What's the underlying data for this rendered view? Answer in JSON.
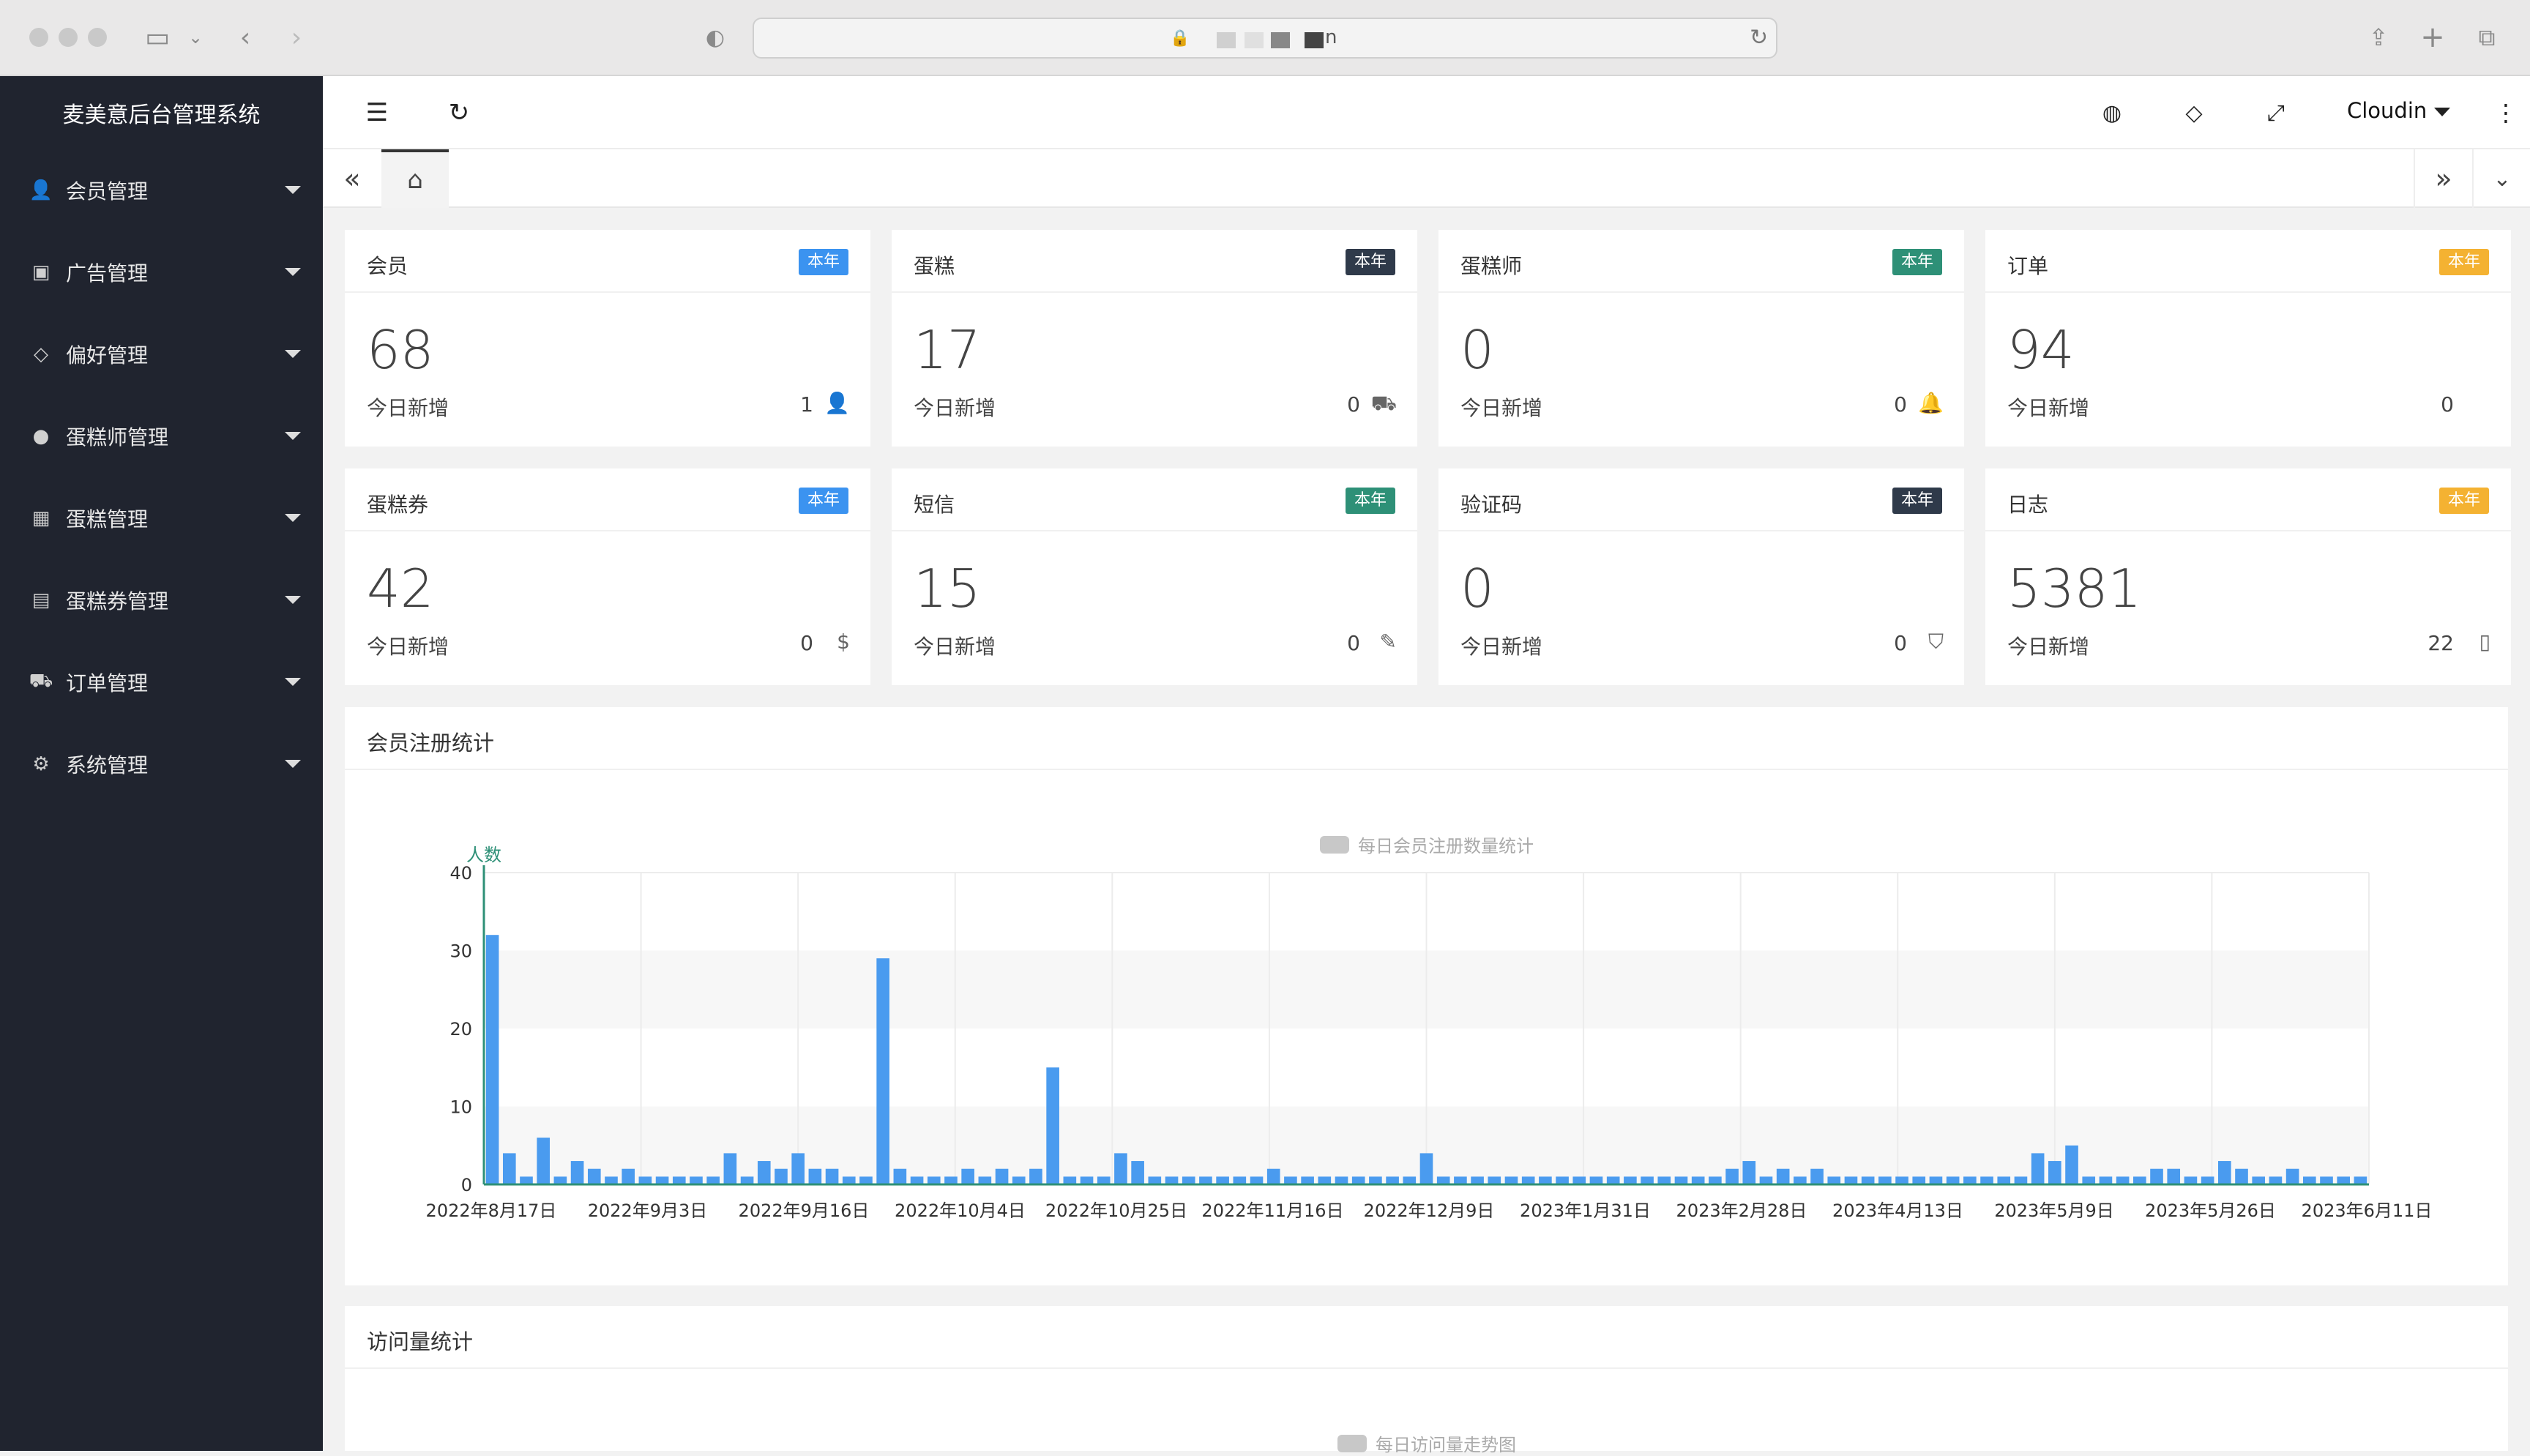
{
  "browser": {
    "url_fragment": "n"
  },
  "sidebar": {
    "title": "麦美意后台管理系统",
    "items": [
      {
        "label": "会员管理",
        "icon": "user-icon"
      },
      {
        "label": "广告管理",
        "icon": "image-icon"
      },
      {
        "label": "偏好管理",
        "icon": "tag-icon"
      },
      {
        "label": "蛋糕师管理",
        "icon": "person-icon"
      },
      {
        "label": "蛋糕管理",
        "icon": "apps-icon"
      },
      {
        "label": "蛋糕券管理",
        "icon": "ticket-icon"
      },
      {
        "label": "订单管理",
        "icon": "cart-icon"
      },
      {
        "label": "系统管理",
        "icon": "gear-icon"
      }
    ]
  },
  "header": {
    "user": "Cloudin"
  },
  "cards": [
    {
      "title": "会员",
      "badge": "本年",
      "badge_color": "#3b93f0",
      "value": "68",
      "sub": "今日新增",
      "count": "1",
      "icon": "user-icon"
    },
    {
      "title": "蛋糕",
      "badge": "本年",
      "badge_color": "#2f3a4a",
      "value": "17",
      "sub": "今日新增",
      "count": "0",
      "icon": "cart-icon"
    },
    {
      "title": "蛋糕师",
      "badge": "本年",
      "badge_color": "#2e9077",
      "value": "0",
      "sub": "今日新增",
      "count": "0",
      "icon": "bell-icon"
    },
    {
      "title": "订单",
      "badge": "本年",
      "badge_color": "#f4b232",
      "value": "94",
      "sub": "今日新增",
      "count": "0",
      "icon": ""
    },
    {
      "title": "蛋糕券",
      "badge": "本年",
      "badge_color": "#3b93f0",
      "value": "42",
      "sub": "今日新增",
      "count": "0",
      "icon": "dollar-icon"
    },
    {
      "title": "短信",
      "badge": "本年",
      "badge_color": "#2e9077",
      "value": "15",
      "sub": "今日新增",
      "count": "0",
      "icon": "pencil-icon"
    },
    {
      "title": "验证码",
      "badge": "本年",
      "badge_color": "#2f3a4a",
      "value": "0",
      "sub": "今日新增",
      "count": "0",
      "icon": "shield-icon"
    },
    {
      "title": "日志",
      "badge": "本年",
      "badge_color": "#f4b232",
      "value": "5381",
      "sub": "今日新增",
      "count": "22",
      "icon": "file-icon"
    }
  ],
  "registration_panel": {
    "title": "会员注册统计",
    "legend": "每日会员注册数量统计"
  },
  "visits_panel": {
    "title": "访问量统计",
    "legend": "每日访问量走势图"
  },
  "chart_data": {
    "type": "bar",
    "title": "",
    "legend": "每日会员注册数量统计",
    "ylabel": "人数",
    "ylim": [
      0,
      40
    ],
    "yticks": [
      0,
      10,
      20,
      30,
      40
    ],
    "bar_color": "#4a9bef",
    "axis_color": "#2e9077",
    "x_tick_labels": [
      "2022年8月17日",
      "2022年9月3日",
      "2022年9月16日",
      "2022年10月4日",
      "2022年10月25日",
      "2022年11月16日",
      "2022年12月9日",
      "2023年1月31日",
      "2023年2月28日",
      "2023年4月13日",
      "2023年5月9日",
      "2023年5月26日",
      "2023年6月11日"
    ],
    "values": [
      32,
      4,
      1,
      6,
      1,
      3,
      2,
      1,
      2,
      1,
      1,
      1,
      1,
      1,
      4,
      1,
      3,
      2,
      4,
      2,
      2,
      1,
      1,
      29,
      2,
      1,
      1,
      1,
      2,
      1,
      2,
      1,
      2,
      15,
      1,
      1,
      1,
      4,
      3,
      1,
      1,
      1,
      1,
      1,
      1,
      1,
      2,
      1,
      1,
      1,
      1,
      1,
      1,
      1,
      1,
      4,
      1,
      1,
      1,
      1,
      1,
      1,
      1,
      1,
      1,
      1,
      1,
      1,
      1,
      1,
      1,
      1,
      1,
      2,
      3,
      1,
      2,
      1,
      2,
      1,
      1,
      1,
      1,
      1,
      1,
      1,
      1,
      1,
      1,
      1,
      1,
      4,
      3,
      5,
      1,
      1,
      1,
      1,
      2,
      2,
      1,
      1,
      3,
      2,
      1,
      1,
      2,
      1,
      1,
      1,
      1
    ]
  }
}
